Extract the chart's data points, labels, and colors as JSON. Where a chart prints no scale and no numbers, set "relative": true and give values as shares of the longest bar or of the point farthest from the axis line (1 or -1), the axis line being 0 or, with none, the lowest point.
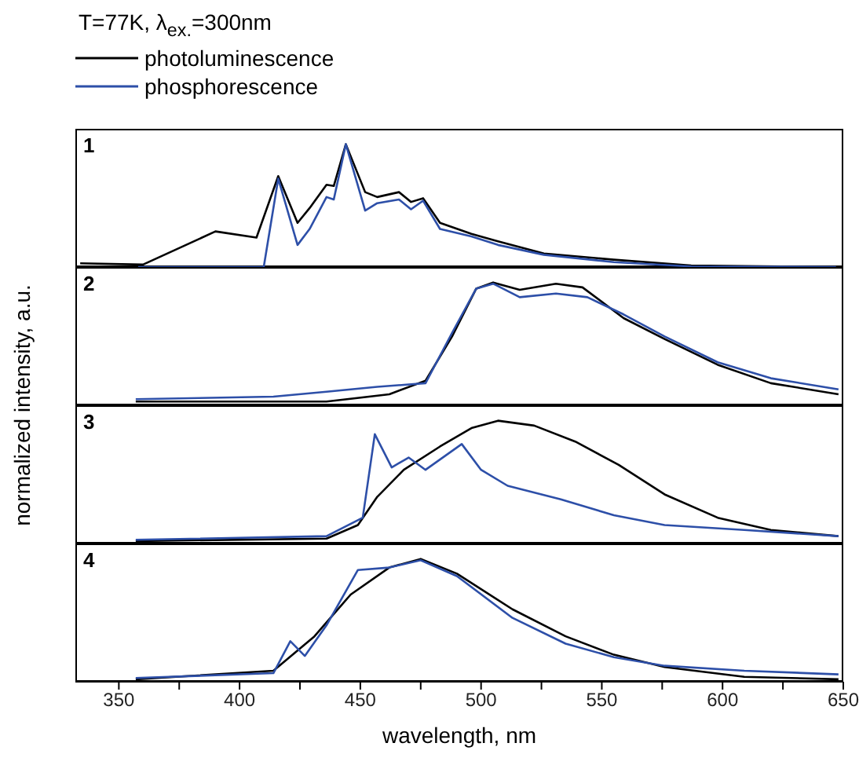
{
  "chart_data": [
    {
      "type": "line",
      "title": "T=77K, λ$_{ex.}$=300nm",
      "ylabel": "normalized intensity, a.u.",
      "legend": "top left",
      "relative": true,
      "annotations": [
        "1"
      ],
      "xlim": [
        332,
        650
      ],
      "tick_labels": false,
      "series": [
        {
          "name": "photoluminescence",
          "color": "#000000",
          "x": [
            334,
            360,
            390,
            407,
            416,
            424,
            429,
            436,
            439,
            444,
            452,
            457,
            466,
            471,
            476,
            483,
            496,
            507,
            526,
            555,
            587,
            647
          ],
          "values": [
            0.03,
            0.02,
            0.29,
            0.24,
            0.74,
            0.36,
            0.48,
            0.67,
            0.66,
            1.0,
            0.61,
            0.57,
            0.61,
            0.53,
            0.56,
            0.36,
            0.27,
            0.21,
            0.11,
            0.06,
            0.013,
            0
          ]
        },
        {
          "name": "phosphorescence",
          "color": "#2d4fa8",
          "x": [
            358,
            410,
            416,
            424,
            429,
            436,
            439,
            444,
            452,
            457,
            466,
            471,
            476,
            483,
            496,
            507,
            526,
            555,
            587,
            647
          ],
          "values": [
            0,
            0,
            0.72,
            0.18,
            0.31,
            0.57,
            0.55,
            1.0,
            0.46,
            0.52,
            0.55,
            0.47,
            0.54,
            0.31,
            0.25,
            0.18,
            0.1,
            0.04,
            0.005,
            0
          ]
        }
      ]
    },
    {
      "type": "line",
      "relative": true,
      "annotations": [
        "2"
      ],
      "xlim": [
        332,
        650
      ],
      "tick_labels": false,
      "series": [
        {
          "color": "#000000",
          "x": [
            357,
            436,
            462,
            477,
            488,
            498,
            505,
            516,
            531,
            542,
            559,
            576,
            598,
            620,
            648
          ],
          "values": [
            0.03,
            0.03,
            0.09,
            0.2,
            0.56,
            0.95,
            1.0,
            0.94,
            0.99,
            0.96,
            0.71,
            0.54,
            0.33,
            0.18,
            0.09
          ]
        },
        {
          "color": "#2d4fa8",
          "x": [
            357,
            414,
            436,
            457,
            477,
            488,
            498,
            505,
            516,
            531,
            544,
            559,
            576,
            598,
            620,
            648
          ],
          "values": [
            0.05,
            0.07,
            0.11,
            0.15,
            0.18,
            0.59,
            0.95,
            0.99,
            0.88,
            0.91,
            0.88,
            0.74,
            0.56,
            0.35,
            0.22,
            0.13
          ]
        }
      ]
    },
    {
      "type": "line",
      "relative": true,
      "annotations": [
        "3"
      ],
      "xlim": [
        332,
        650
      ],
      "tick_labels": false,
      "series": [
        {
          "color": "#000000",
          "x": [
            357,
            436,
            449,
            457,
            468,
            483,
            496,
            507,
            522,
            539,
            557,
            576,
            598,
            620,
            648
          ],
          "values": [
            0.02,
            0.04,
            0.15,
            0.38,
            0.6,
            0.79,
            0.94,
            1.0,
            0.96,
            0.83,
            0.64,
            0.4,
            0.21,
            0.11,
            0.06
          ]
        },
        {
          "color": "#2d4fa8",
          "x": [
            357,
            436,
            451,
            456,
            463,
            470,
            477,
            492,
            500,
            511,
            533,
            555,
            576,
            609,
            648
          ],
          "values": [
            0.03,
            0.06,
            0.21,
            0.89,
            0.62,
            0.7,
            0.6,
            0.81,
            0.6,
            0.47,
            0.36,
            0.23,
            0.15,
            0.11,
            0.06
          ]
        }
      ]
    },
    {
      "type": "line",
      "relative": true,
      "annotations": [
        "4"
      ],
      "xlabel": "wavelength, nm",
      "xlim": [
        332,
        650
      ],
      "xticks": [
        350,
        {
          "value": 375,
          "label": null
        },
        400,
        {
          "value": 425,
          "label": null
        },
        450,
        {
          "value": 475,
          "label": null
        },
        500,
        {
          "value": 525,
          "label": null
        },
        550,
        {
          "value": 575,
          "label": null
        },
        600,
        {
          "value": 625,
          "label": null
        },
        650
      ],
      "tick_labels": "x",
      "series": [
        {
          "color": "#000000",
          "x": [
            357,
            414,
            431,
            446,
            462,
            475,
            490,
            513,
            535,
            555,
            576,
            609,
            648
          ],
          "values": [
            0.02,
            0.09,
            0.37,
            0.71,
            0.93,
            1.0,
            0.88,
            0.59,
            0.37,
            0.22,
            0.12,
            0.04,
            0.02
          ]
        },
        {
          "color": "#2d4fa8",
          "x": [
            357,
            414,
            421,
            427,
            436,
            449,
            462,
            475,
            490,
            513,
            535,
            555,
            576,
            609,
            648
          ],
          "values": [
            0.03,
            0.07,
            0.33,
            0.21,
            0.46,
            0.91,
            0.93,
            0.99,
            0.86,
            0.52,
            0.31,
            0.2,
            0.13,
            0.09,
            0.06
          ]
        }
      ]
    }
  ]
}
